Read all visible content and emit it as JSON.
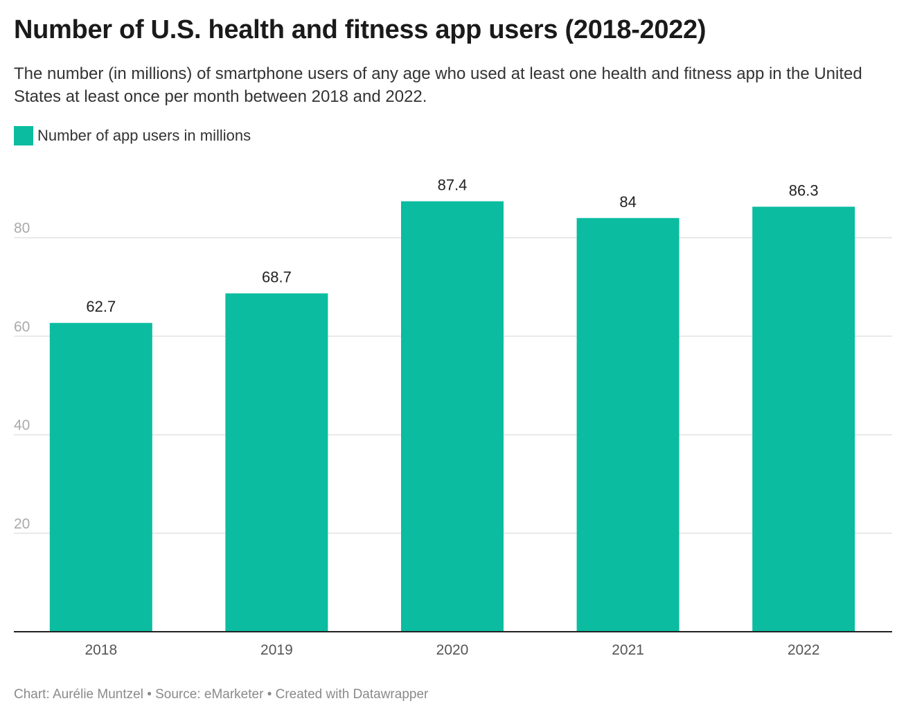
{
  "header": {
    "title": "Number of U.S. health and fitness app users (2018-2022)",
    "subtitle": "The number (in millions) of smartphone users of any age who used at least one health and fitness app in the United States at least once per month between 2018 and 2022."
  },
  "legend": {
    "label": "Number of app users in millions"
  },
  "footer": {
    "text": "Chart: Aurélie Muntzel • Source: eMarketer • Created with Datawrapper"
  },
  "colors": {
    "bar": "#0bbca0",
    "grid": "#e2e2e2",
    "axis": "#222222"
  },
  "chart_data": {
    "type": "bar",
    "title": "Number of U.S. health and fitness app users (2018-2022)",
    "xlabel": "",
    "ylabel": "",
    "categories": [
      "2018",
      "2019",
      "2020",
      "2021",
      "2022"
    ],
    "series": [
      {
        "name": "Number of app users in millions",
        "values": [
          62.7,
          68.7,
          87.4,
          84,
          86.3
        ]
      }
    ],
    "value_labels": [
      "62.7",
      "68.7",
      "87.4",
      "84",
      "86.3"
    ],
    "y_ticks": [
      20,
      40,
      60,
      80
    ],
    "y_tick_labels": [
      "20",
      "40",
      "60",
      "80"
    ],
    "ylim": [
      0,
      91
    ],
    "grid": true,
    "legend_position": "top-left"
  }
}
